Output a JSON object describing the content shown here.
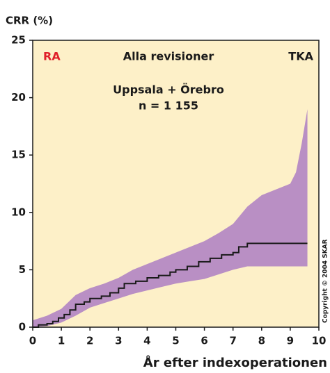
{
  "chart_data": {
    "type": "step-band",
    "ylabel": "CRR (%)",
    "xlabel": "År efter indexoperationen",
    "annotations": {
      "left": "RA",
      "center": "Alla revisioner",
      "right": "TKA",
      "group": "Uppsala + Örebro",
      "n": "n = 1 155",
      "copyright": "Copyright © 2004 SKAR"
    },
    "xlim": [
      0,
      10
    ],
    "xticks": [
      0,
      1,
      2,
      3,
      4,
      5,
      6,
      7,
      8,
      9,
      10
    ],
    "ylim": [
      0,
      25
    ],
    "yticks": [
      0,
      5,
      10,
      15,
      20,
      25
    ],
    "background": "#fdf0c8",
    "step": "post",
    "line": {
      "color": "#1a1a1a",
      "x": [
        0,
        0.2,
        0.5,
        0.7,
        0.9,
        1.1,
        1.3,
        1.5,
        1.8,
        2,
        2.4,
        2.7,
        3,
        3.2,
        3.6,
        4,
        4.4,
        4.8,
        5,
        5.4,
        5.8,
        6.2,
        6.6,
        7,
        7.2,
        7.5,
        9.6
      ],
      "values": [
        0,
        0.2,
        0.3,
        0.5,
        0.8,
        1.1,
        1.5,
        2,
        2.2,
        2.5,
        2.7,
        3,
        3.4,
        3.8,
        4,
        4.3,
        4.5,
        4.8,
        5,
        5.3,
        5.7,
        6,
        6.3,
        6.5,
        7,
        7.3,
        7.3
      ]
    },
    "band": {
      "color": "#b98fc4",
      "x": [
        0,
        0.5,
        1,
        1.5,
        2,
        2.5,
        3,
        3.5,
        4,
        4.5,
        5,
        5.5,
        6,
        6.5,
        7,
        7.5,
        8,
        8.5,
        9,
        9.2,
        9.4,
        9.6
      ],
      "upper": [
        0.6,
        1,
        1.6,
        2.8,
        3.4,
        3.8,
        4.3,
        5,
        5.5,
        6,
        6.5,
        7,
        7.5,
        8.2,
        9,
        10.5,
        11.5,
        12,
        12.5,
        13.5,
        16,
        19
      ],
      "lower": [
        0,
        0.1,
        0.4,
        1,
        1.7,
        2.1,
        2.5,
        2.9,
        3.2,
        3.5,
        3.8,
        4,
        4.2,
        4.6,
        5,
        5.3,
        5.3,
        5.3,
        5.3,
        5.3,
        5.3,
        5.3
      ]
    }
  }
}
